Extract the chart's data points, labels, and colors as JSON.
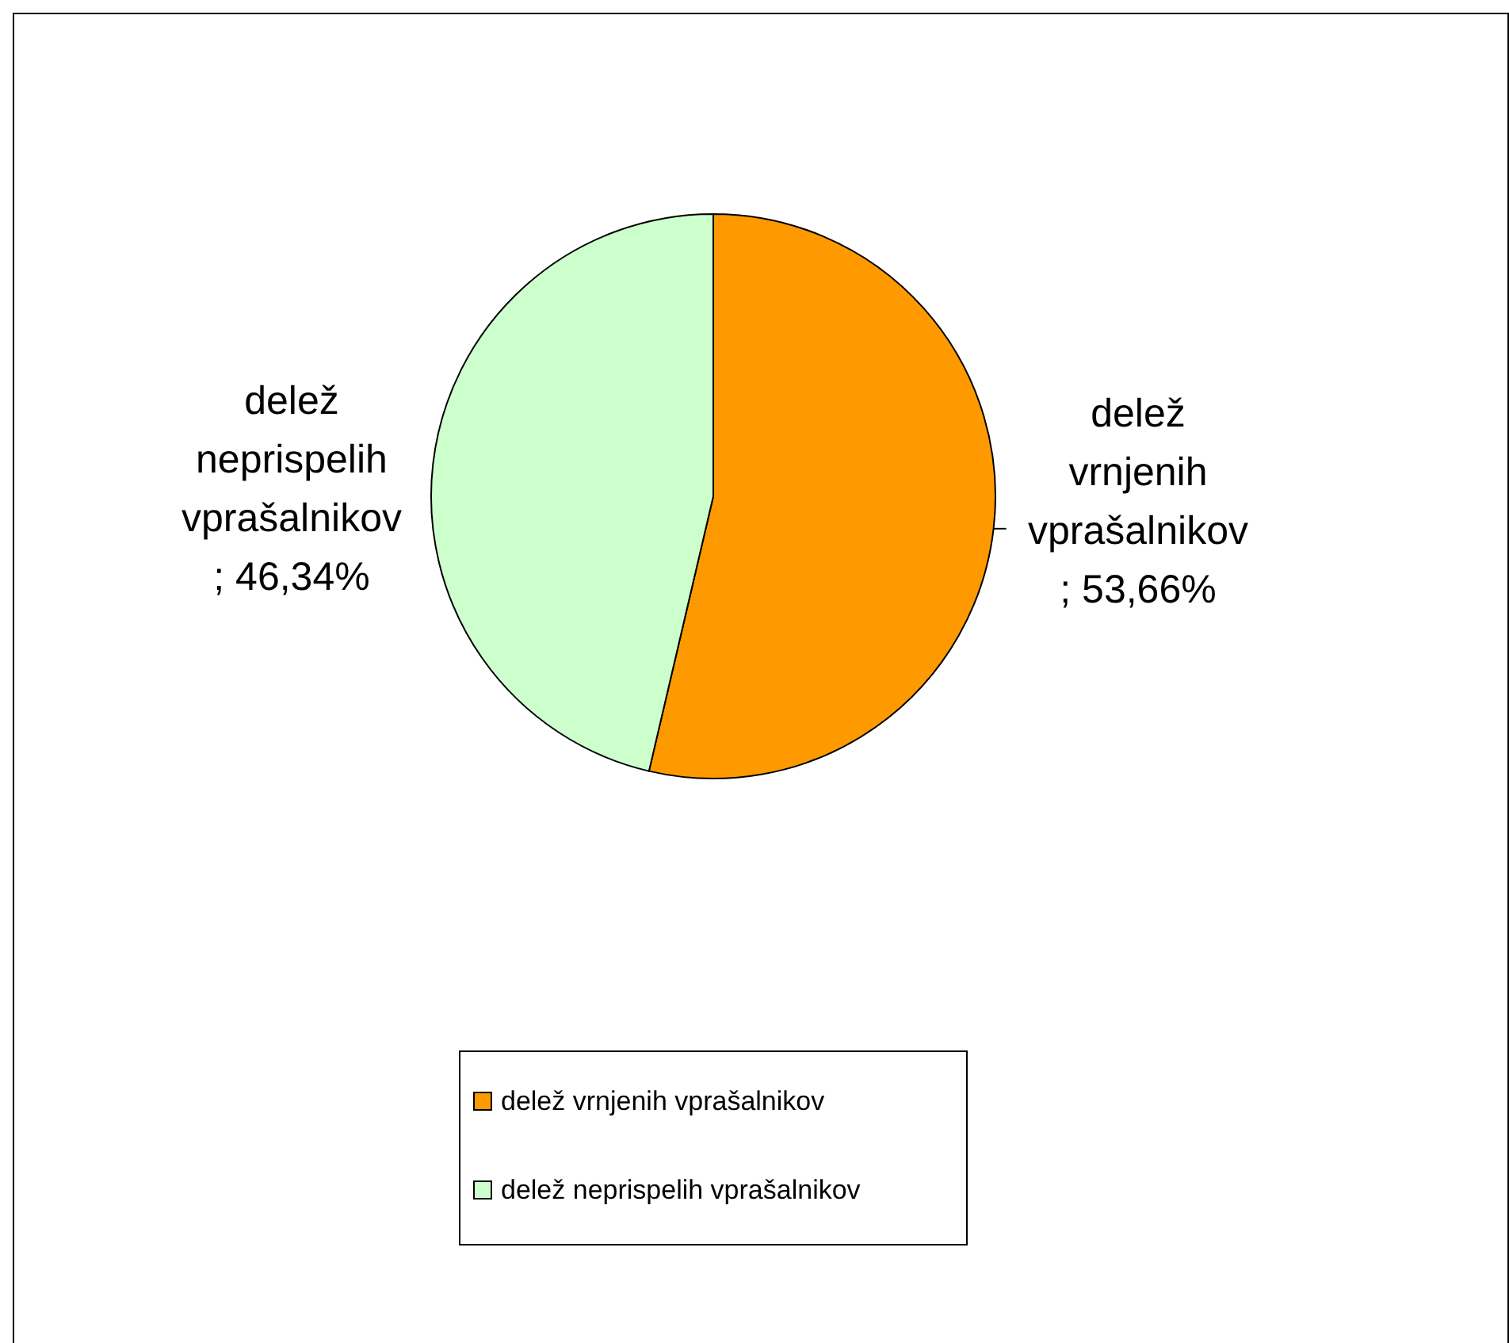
{
  "chart_data": {
    "type": "pie",
    "categories": [
      "delež vrnjenih vprašalnikov",
      "delež neprispelih vprašalnikov"
    ],
    "values": [
      53.66,
      46.34
    ],
    "colors": [
      "#ff9900",
      "#ccffcc"
    ],
    "value_labels": [
      "; 53,66%",
      "; 46,34%"
    ],
    "legend": "bottom"
  }
}
